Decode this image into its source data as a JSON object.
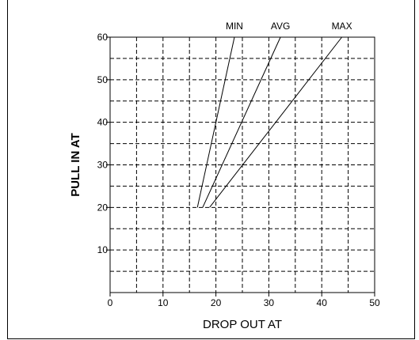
{
  "chart_data": {
    "type": "line",
    "xlabel": "DROP OUT AT",
    "ylabel": "PULL IN AT",
    "xlim": [
      0,
      50
    ],
    "ylim": [
      0,
      60
    ],
    "x_ticks": [
      0,
      10,
      20,
      30,
      40,
      50
    ],
    "y_ticks": [
      10,
      20,
      30,
      40,
      50,
      60
    ],
    "grid": true,
    "grid_style": "dashed",
    "series": [
      {
        "name": "MIN",
        "points": [
          [
            16.5,
            20
          ],
          [
            23.5,
            60
          ]
        ]
      },
      {
        "name": "AVG",
        "points": [
          [
            17.5,
            20
          ],
          [
            32.2,
            60
          ]
        ]
      },
      {
        "name": "MAX",
        "points": [
          [
            18.8,
            20
          ],
          [
            43.8,
            60
          ]
        ]
      }
    ]
  }
}
